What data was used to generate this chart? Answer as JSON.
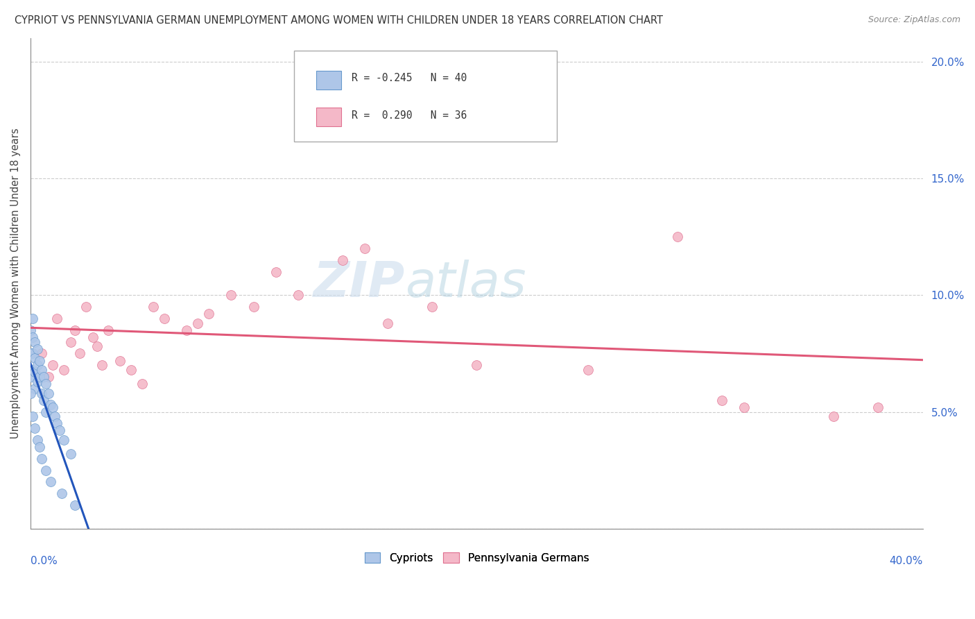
{
  "title": "CYPRIOT VS PENNSYLVANIA GERMAN UNEMPLOYMENT AMONG WOMEN WITH CHILDREN UNDER 18 YEARS CORRELATION CHART",
  "source": "Source: ZipAtlas.com",
  "ylabel": "Unemployment Among Women with Children Under 18 years",
  "x_min": 0.0,
  "x_max": 0.4,
  "y_min": 0.0,
  "y_max": 0.21,
  "yticks": [
    0.0,
    0.05,
    0.1,
    0.15,
    0.2
  ],
  "ytick_labels": [
    "",
    "5.0%",
    "10.0%",
    "15.0%",
    "20.0%"
  ],
  "cypriot_color": "#aec6e8",
  "cypriot_edge": "#6699cc",
  "pennsylvania_color": "#f4b8c8",
  "pennsylvania_edge": "#e07090",
  "blue_line_color": "#2255bb",
  "pink_line_color": "#e05878",
  "dashed_line_color": "#aabbcc",
  "background_color": "#ffffff",
  "grid_color": "#cccccc",
  "cypriot_x": [
    0.0,
    0.0,
    0.0,
    0.001,
    0.001,
    0.001,
    0.001,
    0.002,
    0.002,
    0.002,
    0.002,
    0.003,
    0.003,
    0.003,
    0.004,
    0.004,
    0.005,
    0.005,
    0.006,
    0.006,
    0.007,
    0.007,
    0.008,
    0.009,
    0.01,
    0.011,
    0.012,
    0.013,
    0.015,
    0.018,
    0.0,
    0.001,
    0.002,
    0.003,
    0.004,
    0.005,
    0.007,
    0.009,
    0.014,
    0.02
  ],
  "cypriot_y": [
    0.085,
    0.075,
    0.065,
    0.09,
    0.082,
    0.075,
    0.068,
    0.08,
    0.073,
    0.067,
    0.06,
    0.077,
    0.07,
    0.063,
    0.072,
    0.065,
    0.068,
    0.058,
    0.065,
    0.055,
    0.062,
    0.05,
    0.058,
    0.053,
    0.052,
    0.048,
    0.045,
    0.042,
    0.038,
    0.032,
    0.058,
    0.048,
    0.043,
    0.038,
    0.035,
    0.03,
    0.025,
    0.02,
    0.015,
    0.01
  ],
  "pennsylvania_x": [
    0.005,
    0.008,
    0.01,
    0.012,
    0.015,
    0.018,
    0.02,
    0.022,
    0.025,
    0.028,
    0.03,
    0.032,
    0.035,
    0.04,
    0.045,
    0.05,
    0.055,
    0.06,
    0.07,
    0.075,
    0.08,
    0.09,
    0.1,
    0.11,
    0.12,
    0.14,
    0.15,
    0.16,
    0.18,
    0.2,
    0.25,
    0.29,
    0.31,
    0.32,
    0.36,
    0.38
  ],
  "pennsylvania_y": [
    0.075,
    0.065,
    0.07,
    0.09,
    0.068,
    0.08,
    0.085,
    0.075,
    0.095,
    0.082,
    0.078,
    0.07,
    0.085,
    0.072,
    0.068,
    0.062,
    0.095,
    0.09,
    0.085,
    0.088,
    0.092,
    0.1,
    0.095,
    0.11,
    0.1,
    0.115,
    0.12,
    0.088,
    0.095,
    0.07,
    0.068,
    0.125,
    0.055,
    0.052,
    0.048,
    0.052
  ],
  "marker_size": 100,
  "r_cypriot": -0.245,
  "n_cypriot": 40,
  "r_penn": 0.29,
  "n_penn": 36,
  "watermark": "ZIP",
  "watermark2": "atlas"
}
